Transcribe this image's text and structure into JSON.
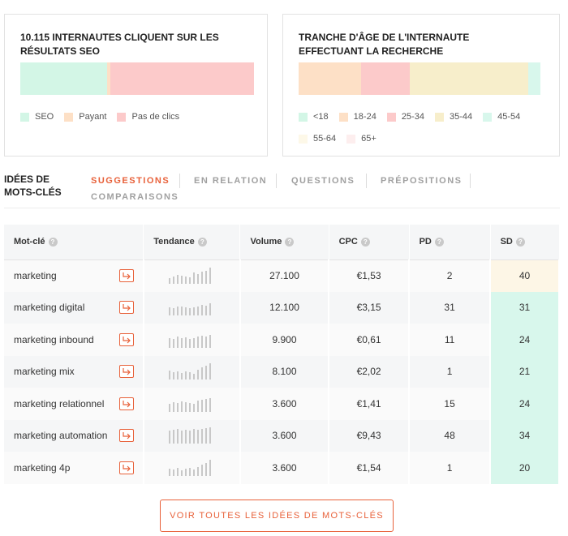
{
  "clicks_card": {
    "title": "10.115 internautes cliquent sur les résultats SEO",
    "segments": [
      {
        "name": "SEO",
        "share": 0.37,
        "color": "#d3f6e6"
      },
      {
        "name": "Payant",
        "share": 0.015,
        "color": "#fde0c6"
      },
      {
        "name": "Pas de clics",
        "share": 0.615,
        "color": "#fccaca"
      }
    ]
  },
  "age_card": {
    "title": "Tranche d'âge de l'internaute effectuant la recherche",
    "segments": [
      {
        "name": "<18",
        "share": 0.0,
        "color": "#d3f6e6"
      },
      {
        "name": "18-24",
        "share": 0.26,
        "color": "#fde0c6"
      },
      {
        "name": "25-34",
        "share": 0.2,
        "color": "#fccaca"
      },
      {
        "name": "35-44",
        "share": 0.49,
        "color": "#f7eecb"
      },
      {
        "name": "45-54",
        "share": 0.05,
        "color": "#d8f7ec"
      },
      {
        "name": "55-64",
        "share": 0.0,
        "color": "#fdf8e8"
      },
      {
        "name": "65+",
        "share": 0.0,
        "color": "#fdeeee"
      }
    ]
  },
  "ideas": {
    "title": "Idées de mots-clés",
    "tabs": [
      "Suggestions",
      "En relation",
      "Questions",
      "Prépositions",
      "Comparaisons"
    ],
    "active_tab": "Suggestions"
  },
  "table": {
    "columns": [
      "Mot-clé",
      "Tendance",
      "Volume",
      "CPC",
      "PD",
      "SD"
    ],
    "rows": [
      {
        "keyword": "marketing",
        "trend": [
          0.35,
          0.45,
          0.55,
          0.5,
          0.45,
          0.4,
          0.7,
          0.6,
          0.75,
          0.8,
          1.0
        ],
        "volume": "27.100",
        "cpc": "€1,53",
        "pd": "2",
        "sd": "40",
        "sd_color": "#fdf6e6"
      },
      {
        "keyword": "marketing digital",
        "trend": [
          0.5,
          0.45,
          0.55,
          0.55,
          0.5,
          0.45,
          0.5,
          0.55,
          0.65,
          0.6,
          0.75
        ],
        "volume": "12.100",
        "cpc": "€3,15",
        "pd": "31",
        "sd": "31",
        "sd_color": "#d8f7ec"
      },
      {
        "keyword": "marketing inbound",
        "trend": [
          0.6,
          0.55,
          0.7,
          0.6,
          0.65,
          0.55,
          0.6,
          0.7,
          0.75,
          0.7,
          0.8
        ],
        "volume": "9.900",
        "cpc": "€0,61",
        "pd": "11",
        "sd": "24",
        "sd_color": "#d8f7ec"
      },
      {
        "keyword": "marketing mix",
        "trend": [
          0.55,
          0.45,
          0.5,
          0.4,
          0.5,
          0.45,
          0.35,
          0.6,
          0.75,
          0.85,
          1.0
        ],
        "volume": "8.100",
        "cpc": "€2,02",
        "pd": "1",
        "sd": "21",
        "sd_color": "#d8f7ec"
      },
      {
        "keyword": "marketing relationnel",
        "trend": [
          0.5,
          0.6,
          0.55,
          0.65,
          0.6,
          0.55,
          0.5,
          0.7,
          0.75,
          0.8,
          0.85
        ],
        "volume": "3.600",
        "cpc": "€1,41",
        "pd": "15",
        "sd": "24",
        "sd_color": "#d8f7ec"
      },
      {
        "keyword": "marketing automation",
        "trend": [
          0.8,
          0.85,
          0.9,
          0.8,
          0.85,
          0.8,
          0.9,
          0.85,
          0.9,
          0.95,
          1.0
        ],
        "volume": "3.600",
        "cpc": "€9,43",
        "pd": "48",
        "sd": "34",
        "sd_color": "#d8f7ec"
      },
      {
        "keyword": "marketing 4p",
        "trend": [
          0.45,
          0.4,
          0.5,
          0.35,
          0.45,
          0.5,
          0.4,
          0.55,
          0.7,
          0.8,
          1.0
        ],
        "volume": "3.600",
        "cpc": "€1,54",
        "pd": "1",
        "sd": "20",
        "sd_color": "#d8f7ec"
      }
    ]
  },
  "cta": {
    "label": "Voir toutes les idées de mots-clés"
  },
  "colors": {
    "accent": "#e8613a"
  }
}
